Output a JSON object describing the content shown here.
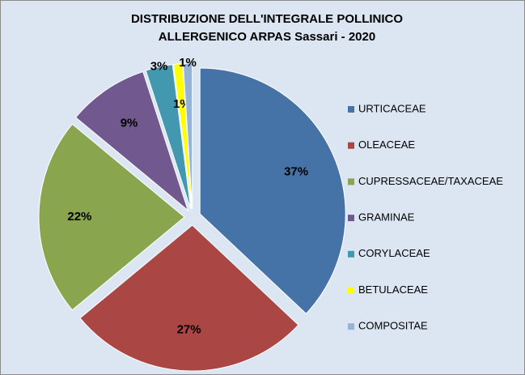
{
  "chart_data": {
    "type": "pie",
    "title": [
      "DISTRIBUZIONE DELL'INTEGRALE POLLINICO",
      "ALLERGENICO ARPAS Sassari - 2020"
    ],
    "categories": [
      "URTICACEAE",
      "OLEACEAE",
      "CUPRESSACEAE/TAXACEAE",
      "GRAMINAE",
      "CORYLACEAE",
      "BETULACEAE",
      "COMPOSITAE"
    ],
    "values": [
      37,
      27,
      22,
      9,
      3,
      1,
      1
    ],
    "value_labels": [
      "37%",
      "27%",
      "22%",
      "9%",
      "3%",
      "1%",
      "1%"
    ],
    "colors": [
      "#4572A7",
      "#AA4643",
      "#89A54E",
      "#71588F",
      "#4198AF",
      "#FFFF00",
      "#95B3D7"
    ],
    "legend": "right"
  }
}
